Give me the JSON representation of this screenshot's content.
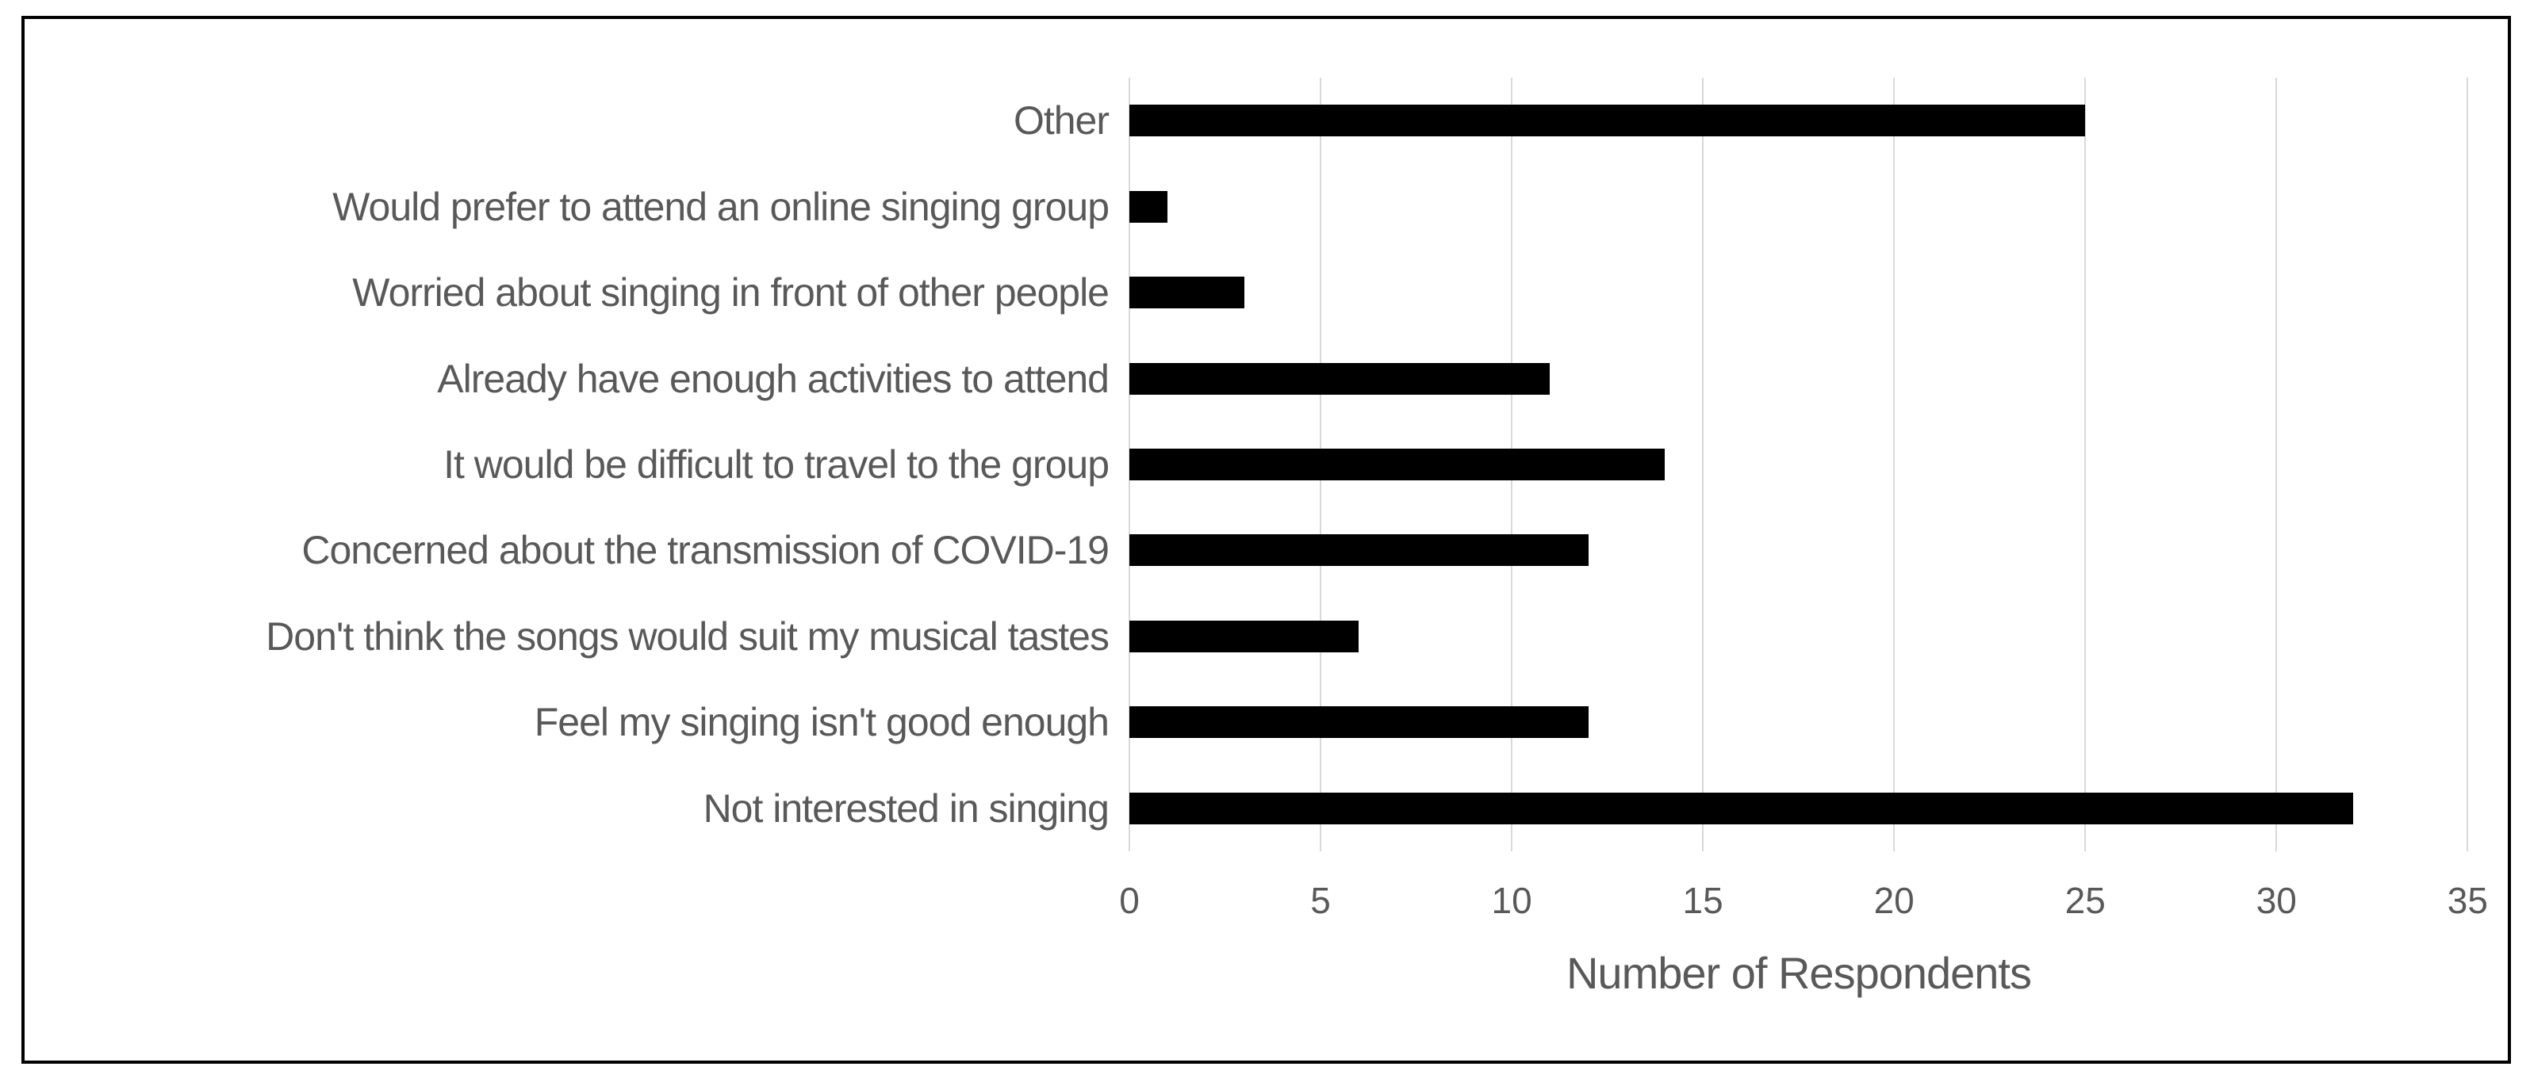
{
  "chart_data": {
    "type": "bar",
    "orientation": "horizontal",
    "title": "",
    "xlabel": "Number of Respondents",
    "categories": [
      "Other",
      "Would prefer to attend an online singing group",
      "Worried about singing in front of other people",
      "Already have enough activities to attend",
      "It would be difficult to travel to the group",
      "Concerned about the transmission of COVID-19",
      "Don't think the songs would suit my musical tastes",
      "Feel my singing isn't good enough",
      "Not interested in singing"
    ],
    "values": [
      25,
      1,
      3,
      11,
      14,
      12,
      6,
      12,
      32
    ],
    "xlim": [
      0,
      35
    ],
    "xticks": [
      0,
      5,
      10,
      15,
      20,
      25,
      30,
      35
    ],
    "grid": true,
    "legend": false,
    "colors": {
      "bar": "#000000",
      "gridline": "#D9D9D9",
      "text": "#595959",
      "frame_border": "#000000",
      "background": "#FFFFFF"
    }
  }
}
